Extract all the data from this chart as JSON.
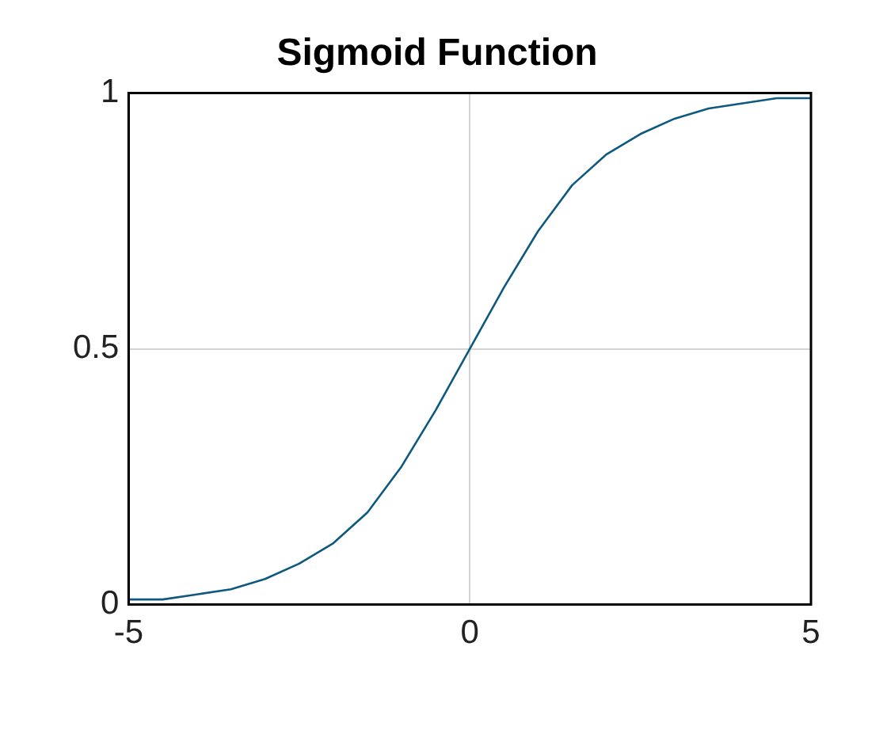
{
  "chart_data": {
    "type": "line",
    "title": "Sigmoid Function",
    "x": [
      -5,
      -4.5,
      -4,
      -3.5,
      -3,
      -2.5,
      -2,
      -1.5,
      -1,
      -0.5,
      0,
      0.5,
      1,
      1.5,
      2,
      2.5,
      3,
      3.5,
      4,
      4.5,
      5
    ],
    "series": [
      {
        "color": "#0e5a7e",
        "values": [
          0.01,
          0.01,
          0.02,
          0.03,
          0.05,
          0.08,
          0.12,
          0.18,
          0.27,
          0.38,
          0.5,
          0.62,
          0.73,
          0.82,
          0.88,
          0.92,
          0.95,
          0.97,
          0.98,
          0.99,
          0.99
        ]
      }
    ],
    "xlim": [
      -5,
      5
    ],
    "xticks": [
      -5,
      0,
      5
    ],
    "ylim": [
      0,
      1
    ],
    "yticks": [
      0,
      0.5,
      1
    ],
    "grid": true,
    "marker": "none"
  }
}
